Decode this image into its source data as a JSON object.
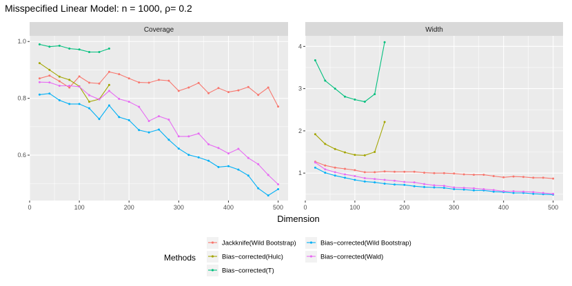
{
  "title": "Misspecified Linear Model: n = 1000, ρ= 0.2",
  "chart_data": {
    "type": "line",
    "xlabel": "Dimension",
    "legend_title": "Methods",
    "legend_position": "bottom",
    "x": [
      20,
      40,
      60,
      80,
      100,
      120,
      140,
      160,
      180,
      200,
      220,
      240,
      260,
      280,
      300,
      320,
      340,
      360,
      380,
      400,
      420,
      440,
      460,
      480,
      500
    ],
    "series_styles": [
      {
        "name": "Jackknife(Wild Bootstrap)",
        "color": "#F8766D"
      },
      {
        "name": "Bias−corrected(Hulc)",
        "color": "#A3A500"
      },
      {
        "name": "Bias−corrected(T)",
        "color": "#00BF7D"
      },
      {
        "name": "Bias−corrected(Wild Bootstrap)",
        "color": "#00B0F6"
      },
      {
        "name": "Bias−corrected(Wald)",
        "color": "#E76BF3"
      }
    ],
    "panels": [
      {
        "title": "Coverage",
        "xlim": [
          0,
          520
        ],
        "ylim": [
          0.44,
          1.02
        ],
        "xticks": [
          0,
          100,
          200,
          300,
          400,
          500
        ],
        "yticks": [
          0.6,
          0.8,
          1.0
        ],
        "ytick_labels": [
          "0.6",
          "0.8",
          "1.0"
        ],
        "series": [
          {
            "name": "Jackknife(Wild Bootstrap)",
            "values": [
              0.87,
              0.88,
              0.86,
              0.838,
              0.877,
              0.855,
              0.852,
              0.893,
              0.885,
              0.87,
              0.856,
              0.855,
              0.865,
              0.862,
              0.826,
              0.838,
              0.854,
              0.818,
              0.836,
              0.822,
              0.828,
              0.84,
              0.812,
              0.838,
              0.771
            ]
          },
          {
            "name": "Bias−corrected(Hulc)",
            "values": [
              0.924,
              0.9,
              0.876,
              0.865,
              0.842,
              0.788,
              0.797,
              0.847
            ]
          },
          {
            "name": "Bias−corrected(T)",
            "values": [
              0.99,
              0.982,
              0.985,
              0.975,
              0.972,
              0.963,
              0.963,
              0.975
            ]
          },
          {
            "name": "Bias−corrected(Wild Bootstrap)",
            "values": [
              0.813,
              0.817,
              0.793,
              0.78,
              0.78,
              0.765,
              0.727,
              0.775,
              0.734,
              0.723,
              0.688,
              0.68,
              0.69,
              0.654,
              0.623,
              0.601,
              0.592,
              0.58,
              0.558,
              0.561,
              0.549,
              0.528,
              0.483,
              0.458,
              0.48
            ]
          },
          {
            "name": "Bias−corrected(Wald)",
            "values": [
              0.857,
              0.856,
              0.844,
              0.844,
              0.841,
              0.811,
              0.796,
              0.826,
              0.798,
              0.788,
              0.77,
              0.72,
              0.737,
              0.725,
              0.666,
              0.666,
              0.676,
              0.638,
              0.625,
              0.606,
              0.622,
              0.59,
              0.568,
              0.53,
              0.497
            ]
          }
        ]
      },
      {
        "title": "Width",
        "xlim": [
          0,
          520
        ],
        "ylim": [
          0.35,
          4.25
        ],
        "xticks": [
          0,
          100,
          200,
          300,
          400,
          500
        ],
        "yticks": [
          1,
          2,
          3,
          4
        ],
        "ytick_labels": [
          "1",
          "2",
          "3",
          "4"
        ],
        "series": [
          {
            "name": "Jackknife(Wild Bootstrap)",
            "values": [
              1.27,
              1.18,
              1.13,
              1.1,
              1.07,
              1.02,
              1.02,
              1.04,
              1.03,
              1.03,
              1.03,
              1.01,
              1.0,
              1.0,
              0.99,
              0.97,
              0.96,
              0.96,
              0.93,
              0.9,
              0.92,
              0.91,
              0.89,
              0.89,
              0.87
            ]
          },
          {
            "name": "Bias−corrected(Hulc)",
            "values": [
              1.92,
              1.69,
              1.57,
              1.49,
              1.43,
              1.42,
              1.5,
              2.21
            ]
          },
          {
            "name": "Bias−corrected(T)",
            "values": [
              3.67,
              3.19,
              3.0,
              2.81,
              2.74,
              2.69,
              2.87,
              4.1
            ]
          },
          {
            "name": "Bias−corrected(Wild Bootstrap)",
            "values": [
              1.13,
              1.01,
              0.94,
              0.89,
              0.84,
              0.8,
              0.78,
              0.75,
              0.73,
              0.72,
              0.69,
              0.67,
              0.66,
              0.65,
              0.62,
              0.61,
              0.59,
              0.59,
              0.56,
              0.55,
              0.53,
              0.53,
              0.51,
              0.5,
              0.49
            ]
          },
          {
            "name": "Bias−corrected(Wald)",
            "values": [
              1.25,
              1.09,
              1.02,
              0.97,
              0.93,
              0.88,
              0.86,
              0.84,
              0.82,
              0.79,
              0.78,
              0.74,
              0.71,
              0.7,
              0.66,
              0.65,
              0.64,
              0.62,
              0.6,
              0.57,
              0.57,
              0.56,
              0.55,
              0.53,
              0.51
            ]
          }
        ]
      }
    ]
  }
}
